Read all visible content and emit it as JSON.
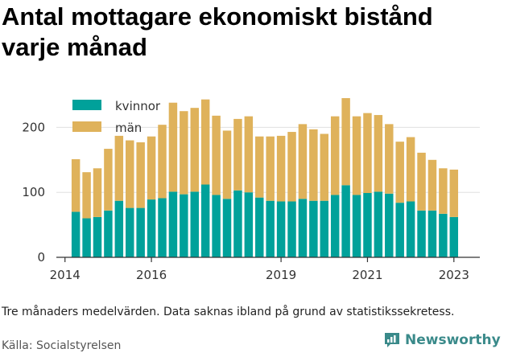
{
  "title": "Antal mottagare ekonomiskt bistånd\nvarje månad",
  "footnote": "Tre månaders medelvärden. Data saknas ibland på grund av statistikssekretess.",
  "source": "Källa: Socialstyrelsen",
  "brand": {
    "name": "Newsworthy",
    "icon": "newsworthy-logo-icon",
    "color": "#3a8a8a"
  },
  "colors": {
    "kvinnor": "#00a19a",
    "man": "#dfb25b",
    "grid": "#e0e0e0",
    "axis": "#333333"
  },
  "chart_data": {
    "type": "bar",
    "stacked": true,
    "title": "Antal mottagare ekonomiskt bistånd varje månad",
    "xlabel": "",
    "ylabel": "",
    "ylim": [
      0,
      250
    ],
    "yticks": [
      0,
      100,
      200
    ],
    "xlim": [
      2013.8,
      2023.6
    ],
    "xticks": [
      2014,
      2016,
      2019,
      2021,
      2023
    ],
    "grid": true,
    "legend": "top-left",
    "x": [
      2014.25,
      2014.5,
      2014.75,
      2015.0,
      2015.25,
      2015.5,
      2015.75,
      2016.0,
      2016.25,
      2016.5,
      2016.75,
      2017.0,
      2017.25,
      2017.5,
      2017.75,
      2018.0,
      2018.25,
      2018.5,
      2018.75,
      2019.0,
      2019.25,
      2019.5,
      2019.75,
      2020.0,
      2020.25,
      2020.5,
      2020.75,
      2021.0,
      2021.25,
      2021.5,
      2021.75,
      2022.0,
      2022.25,
      2022.5,
      2022.75,
      2023.0
    ],
    "series": [
      {
        "name": "kvinnor",
        "values": [
          70,
          60,
          62,
          72,
          87,
          76,
          76,
          89,
          91,
          101,
          97,
          101,
          112,
          96,
          90,
          103,
          100,
          92,
          87,
          86,
          86,
          90,
          87,
          87,
          96,
          111,
          96,
          99,
          101,
          98,
          84,
          86,
          72,
          72,
          67,
          62
        ]
      },
      {
        "name": "män",
        "values": [
          81,
          71,
          75,
          95,
          100,
          104,
          101,
          97,
          113,
          137,
          128,
          129,
          131,
          122,
          105,
          110,
          117,
          94,
          99,
          101,
          107,
          115,
          110,
          103,
          121,
          134,
          121,
          123,
          118,
          107,
          94,
          99,
          89,
          78,
          70,
          73
        ]
      }
    ]
  }
}
